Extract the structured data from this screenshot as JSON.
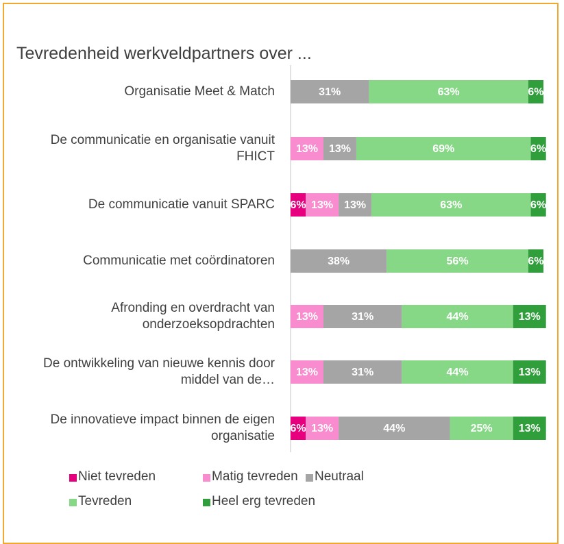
{
  "chart_data": {
    "type": "stacked-bar",
    "orientation": "horizontal",
    "title": "Tevredenheid werkveldpartners over ...",
    "categories": [
      "Organisatie Meet & Match",
      "De communicatie en organisatie vanuit FHICT",
      "De communicatie vanuit SPARC",
      "Communicatie met coördinatoren",
      "Afronding en overdracht van onderzoeksopdrachten",
      "De ontwikkeling van nieuwe kennis door middel van de…",
      "De innovatieve impact binnen de eigen organisatie"
    ],
    "xlim": [
      0,
      100
    ],
    "series": [
      {
        "name": "Niet tevreden",
        "color": "#e6007e",
        "values": [
          null,
          null,
          6,
          null,
          null,
          null,
          6
        ],
        "value_labels": [
          null,
          null,
          "6%",
          null,
          null,
          null,
          "6%"
        ]
      },
      {
        "name": "Matig tevreden",
        "color": "#f98bcf",
        "values": [
          null,
          13,
          13,
          null,
          13,
          13,
          13
        ],
        "value_labels": [
          null,
          "13%",
          "13%",
          null,
          "13%",
          "13%",
          "13%"
        ]
      },
      {
        "name": "Neutraal",
        "color": "#a5a5a5",
        "values": [
          31,
          13,
          13,
          38,
          31,
          31,
          44
        ],
        "value_labels": [
          "31%",
          "13%",
          "13%",
          "38%",
          "31%",
          "31%",
          "44%"
        ]
      },
      {
        "name": "Tevreden",
        "color": "#86d786",
        "values": [
          63,
          69,
          63,
          56,
          44,
          44,
          25
        ],
        "value_labels": [
          "63%",
          "69%",
          "63%",
          "56%",
          "44%",
          "44%",
          "25%"
        ]
      },
      {
        "name": "Heel erg tevreden",
        "color": "#2f9e3b",
        "values": [
          6,
          6,
          6,
          6,
          13,
          13,
          13
        ],
        "value_labels": [
          "6%",
          "6%",
          "6%",
          "6%",
          "13%",
          "13%",
          "13%"
        ]
      }
    ]
  }
}
